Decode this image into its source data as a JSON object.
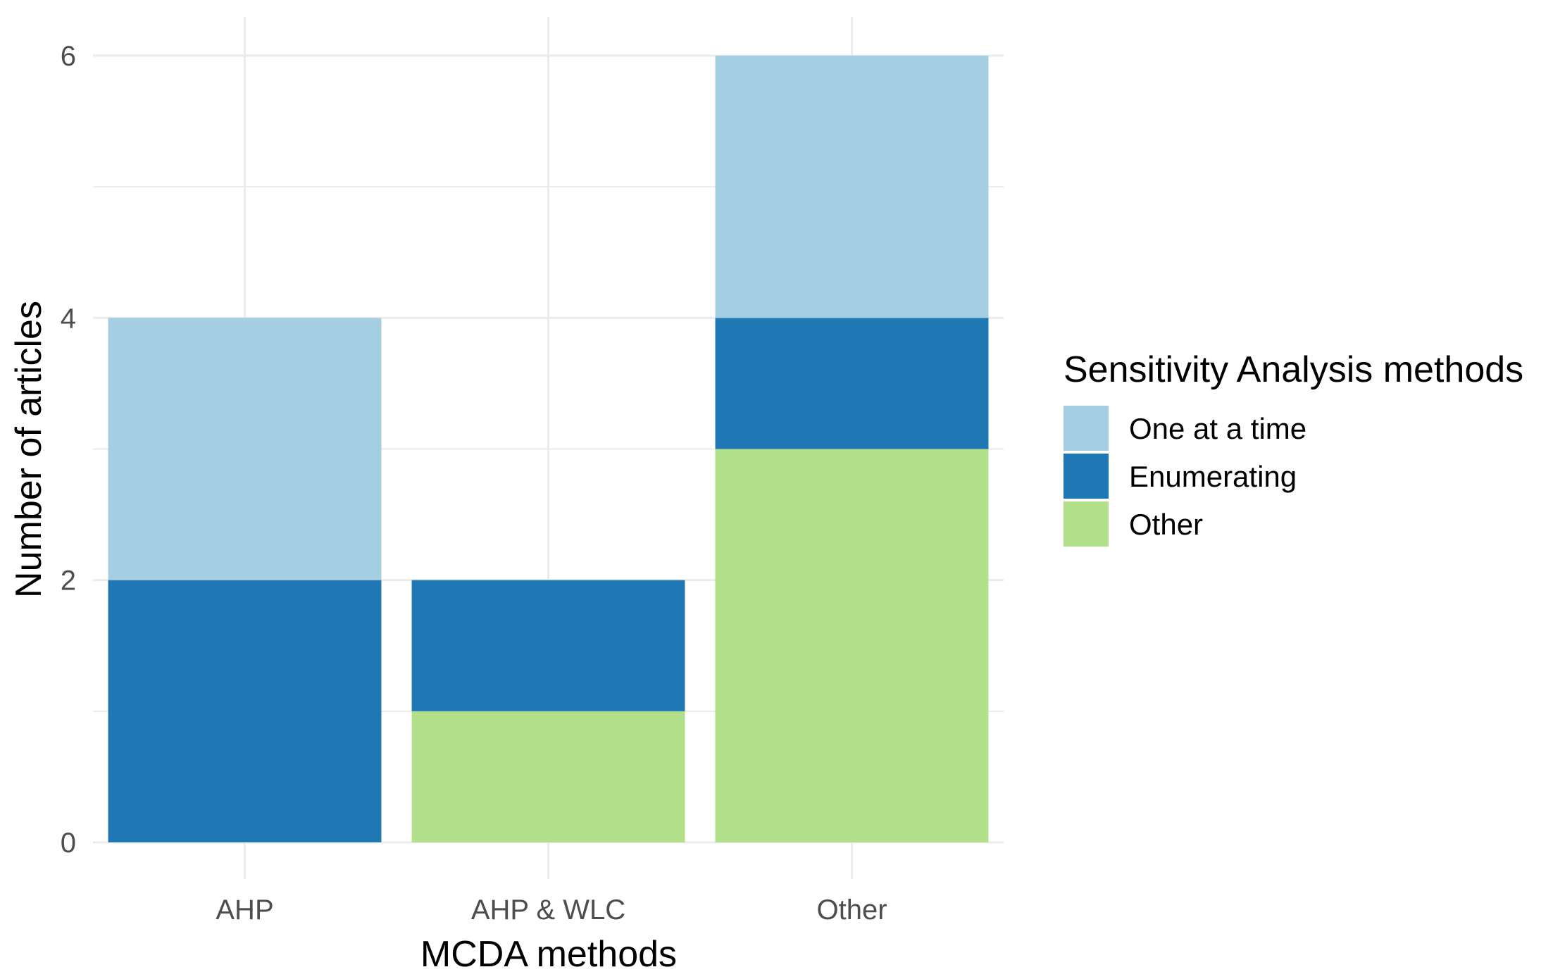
{
  "chart_data": {
    "type": "bar",
    "stacked": true,
    "title": "",
    "xlabel": "MCDA methods",
    "ylabel": "Number of articles",
    "categories": [
      "AHP",
      "AHP & WLC",
      "Other"
    ],
    "ylim": [
      0,
      6
    ],
    "yticks": [
      0,
      2,
      4,
      6
    ],
    "ytick_labels": [
      "0",
      "2",
      "4",
      "6"
    ],
    "grid": true,
    "legend": {
      "title": "Sensitivity Analysis methods",
      "position": "right"
    },
    "series": [
      {
        "name": "Other",
        "color": "#b2df8a",
        "values": [
          0,
          1,
          3
        ]
      },
      {
        "name": "Enumerating",
        "color": "#1f78b4",
        "values": [
          2,
          1,
          1
        ]
      },
      {
        "name": "One at a time",
        "color": "#a6cee3",
        "values": [
          2,
          0,
          2
        ]
      }
    ],
    "legend_order": [
      "One at a time",
      "Enumerating",
      "Other"
    ]
  }
}
